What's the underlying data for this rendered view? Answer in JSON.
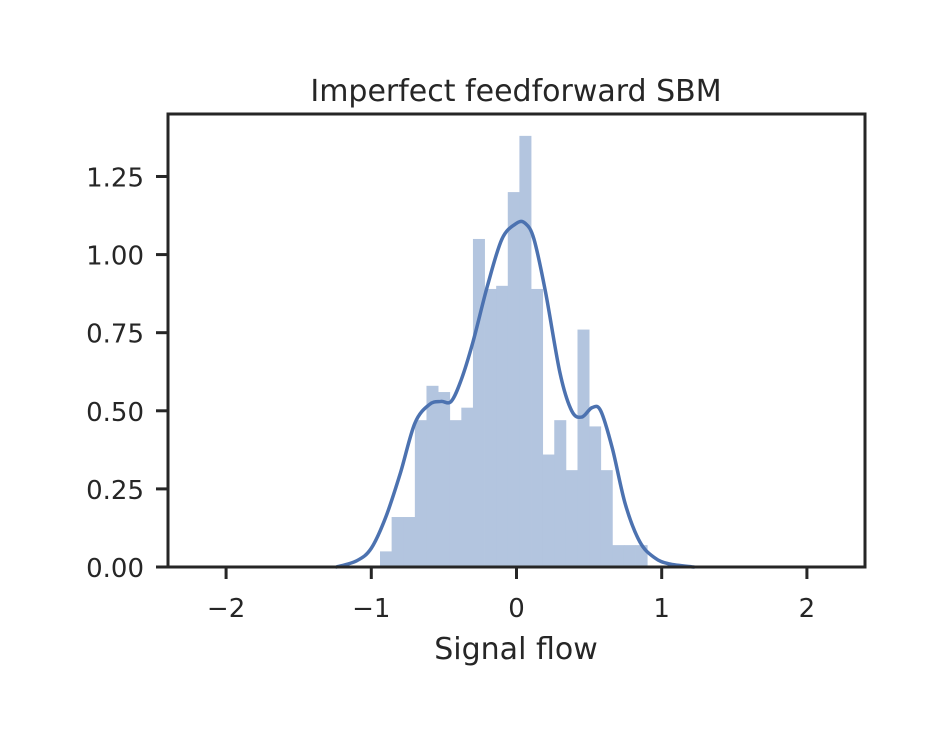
{
  "chart_data": {
    "type": "bar",
    "title": "Imperfect feedforward SBM",
    "xlabel": "Signal flow",
    "ylabel": "",
    "xlim": [
      -2.4,
      2.4
    ],
    "ylim": [
      0,
      1.45
    ],
    "xticks": [
      -2,
      -1,
      0,
      1,
      2
    ],
    "xtick_labels": [
      "−2",
      "−1",
      "0",
      "1",
      "2"
    ],
    "yticks": [
      0,
      0.25,
      0.5,
      0.75,
      1.0,
      1.25
    ],
    "ytick_labels": [
      "0.00",
      "0.25",
      "0.50",
      "0.75",
      "1.00",
      "1.25"
    ],
    "grid": false,
    "colors": {
      "hist": "#b3c5df",
      "kde": "#4c72b0",
      "axes": "#262626"
    },
    "histogram": {
      "bin_edges": [
        -0.94,
        -0.86,
        -0.78,
        -0.7,
        -0.62,
        -0.54,
        -0.46,
        -0.38,
        -0.3,
        -0.22,
        -0.14,
        -0.06,
        0.02,
        0.1,
        0.18,
        0.26,
        0.34,
        0.42,
        0.5,
        0.58,
        0.66,
        0.74,
        0.82,
        0.9
      ],
      "density": [
        0.05,
        0.16,
        0.16,
        0.47,
        0.58,
        0.56,
        0.47,
        0.51,
        1.05,
        0.89,
        0.9,
        1.2,
        1.38,
        0.89,
        0.36,
        0.47,
        0.31,
        0.76,
        0.45,
        0.31,
        0.07,
        0.07,
        0.07
      ]
    },
    "kde": {
      "x": [
        -1.24,
        -1.1,
        -1.0,
        -0.9,
        -0.8,
        -0.7,
        -0.6,
        -0.52,
        -0.45,
        -0.38,
        -0.3,
        -0.2,
        -0.1,
        0.0,
        0.06,
        0.12,
        0.2,
        0.3,
        0.38,
        0.45,
        0.52,
        0.58,
        0.66,
        0.75,
        0.85,
        0.95,
        1.05,
        1.22
      ],
      "y": [
        0.0,
        0.02,
        0.06,
        0.16,
        0.3,
        0.46,
        0.52,
        0.53,
        0.53,
        0.6,
        0.72,
        0.9,
        1.05,
        1.1,
        1.1,
        1.05,
        0.88,
        0.62,
        0.5,
        0.48,
        0.51,
        0.5,
        0.38,
        0.2,
        0.08,
        0.03,
        0.01,
        0.0
      ]
    }
  }
}
